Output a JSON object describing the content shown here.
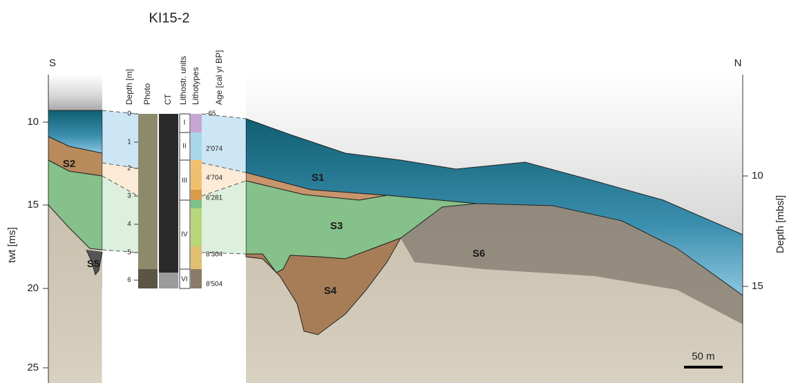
{
  "header": {
    "title": "KI15-2",
    "left_end": "S",
    "right_end": "N"
  },
  "axes": {
    "left": {
      "label": "twt [ms]",
      "ticks": [
        "10",
        "15",
        "20",
        "25"
      ]
    },
    "right": {
      "label": "Depth [mbsl]",
      "ticks": [
        "10",
        "15"
      ]
    }
  },
  "core": {
    "columns": [
      "Depth [m]",
      "Photo",
      "CT",
      "Lithostr. units",
      "Lithotypes",
      "Age [cal yr BP]"
    ],
    "depths": [
      "0",
      "1",
      "2",
      "3",
      "4",
      "5",
      "6"
    ],
    "units": [
      "I",
      "II",
      "III",
      "IV",
      "VI"
    ],
    "ages": [
      "-65",
      "2'074",
      "4'704",
      "6'281",
      "8'304",
      "8'504"
    ]
  },
  "units": [
    "S1",
    "S2",
    "S3",
    "S4",
    "S5",
    "S6"
  ],
  "scale_bar": "50 m"
}
